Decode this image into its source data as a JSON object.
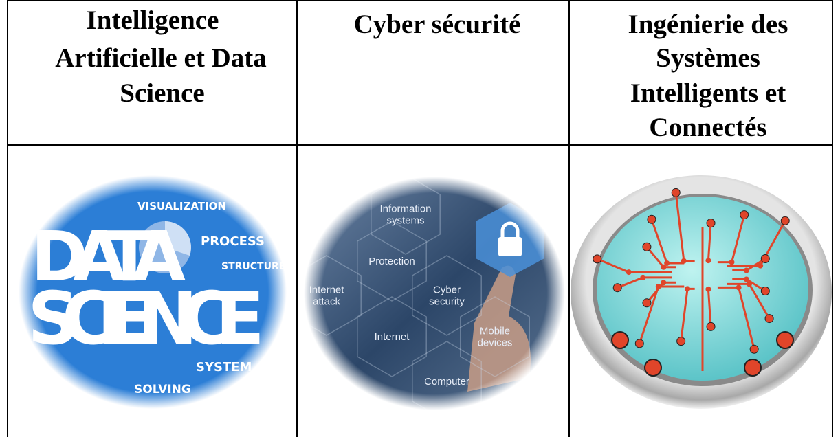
{
  "table": {
    "header": [
      {
        "lines": [
          "Intelligence",
          "Artificielle et Data",
          "Science"
        ]
      },
      {
        "lines": [
          "Cyber  sécurité"
        ]
      },
      {
        "lines": [
          "Ingénierie des",
          "Systèmes",
          "Intelligents et",
          "Connectés"
        ]
      }
    ],
    "images": [
      {
        "labels": [
          "VISUALIZATION",
          "PROCESS",
          "STRUCTURE",
          "DATA",
          "SCIENCE",
          "SYSTEM",
          "SOLVING"
        ]
      },
      {
        "labels": [
          [
            "Information",
            "systems"
          ],
          [
            "Protection"
          ],
          [
            "Cyber",
            "security"
          ],
          [
            "Internet",
            "attack"
          ],
          [
            "Internet"
          ],
          [
            "Mobile",
            "devices"
          ],
          [
            "Computer"
          ]
        ]
      }
    ]
  }
}
